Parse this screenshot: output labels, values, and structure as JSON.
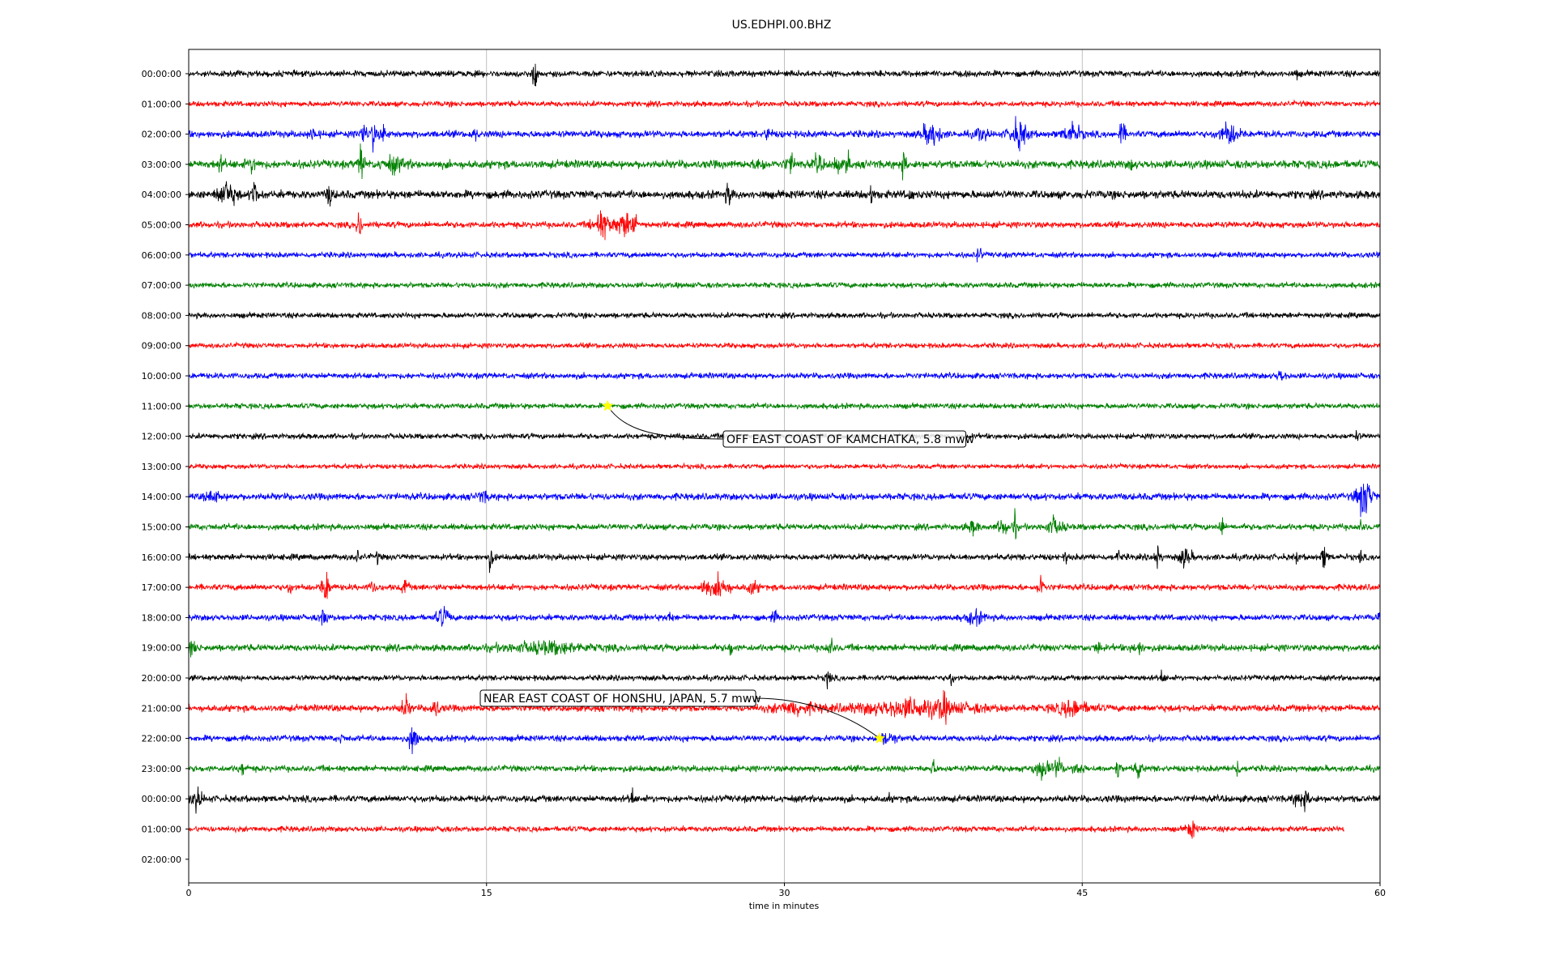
{
  "chart_data": {
    "type": "line",
    "title": "US.EDHPI.00.BHZ",
    "xlabel": "time in minutes",
    "ylabel": "",
    "xlim": [
      0,
      60
    ],
    "x_ticks": [
      "0",
      "15",
      "30",
      "45",
      "60"
    ],
    "x_tick_values": [
      0,
      15,
      30,
      45,
      60
    ],
    "grid": "vertical",
    "row_labels": [
      "00:00:00",
      "01:00:00",
      "02:00:00",
      "03:00:00",
      "04:00:00",
      "05:00:00",
      "06:00:00",
      "07:00:00",
      "08:00:00",
      "09:00:00",
      "10:00:00",
      "11:00:00",
      "12:00:00",
      "13:00:00",
      "14:00:00",
      "15:00:00",
      "16:00:00",
      "17:00:00",
      "18:00:00",
      "19:00:00",
      "20:00:00",
      "21:00:00",
      "22:00:00",
      "23:00:00",
      "00:00:00",
      "01:00:00",
      "02:00:00"
    ],
    "series_colors": [
      "#000000",
      "#ff0000",
      "#0000ff",
      "#008000"
    ],
    "traces": [
      {
        "row": 0,
        "end_min": 60,
        "noise": 0.18,
        "events": [
          {
            "t": 17.4,
            "amp": 1.2,
            "dur": 0.15
          },
          {
            "t": 30.4,
            "amp": 0.25,
            "dur": 0.1
          },
          {
            "t": 55.8,
            "amp": 0.3,
            "dur": 0.1
          }
        ]
      },
      {
        "row": 1,
        "end_min": 60,
        "noise": 0.16,
        "events": []
      },
      {
        "row": 2,
        "end_min": 60,
        "noise": 0.2,
        "events": [
          {
            "t": 6.3,
            "amp": 0.4,
            "dur": 0.3
          },
          {
            "t": 8.8,
            "amp": 0.7,
            "dur": 0.25
          },
          {
            "t": 9.3,
            "amp": 1.0,
            "dur": 0.15
          },
          {
            "t": 9.8,
            "amp": 0.55,
            "dur": 0.25
          },
          {
            "t": 14.4,
            "amp": 0.35,
            "dur": 0.2
          },
          {
            "t": 29.2,
            "amp": 0.45,
            "dur": 0.2
          },
          {
            "t": 37.4,
            "amp": 0.8,
            "dur": 0.6
          },
          {
            "t": 39.9,
            "amp": 0.4,
            "dur": 0.4
          },
          {
            "t": 41.8,
            "amp": 0.9,
            "dur": 0.6
          },
          {
            "t": 44.5,
            "amp": 0.6,
            "dur": 0.6
          },
          {
            "t": 47.0,
            "amp": 0.85,
            "dur": 0.2
          },
          {
            "t": 52.4,
            "amp": 0.65,
            "dur": 0.7
          }
        ]
      },
      {
        "row": 3,
        "end_min": 60,
        "noise": 0.24,
        "events": [
          {
            "t": 1.6,
            "amp": 0.35,
            "dur": 0.3
          },
          {
            "t": 3.2,
            "amp": 0.35,
            "dur": 0.4
          },
          {
            "t": 8.7,
            "amp": 1.2,
            "dur": 0.2
          },
          {
            "t": 10.3,
            "amp": 0.4,
            "dur": 0.8
          },
          {
            "t": 28.8,
            "amp": 0.5,
            "dur": 0.3
          },
          {
            "t": 30.3,
            "amp": 0.55,
            "dur": 0.3
          },
          {
            "t": 31.7,
            "amp": 0.55,
            "dur": 0.3
          },
          {
            "t": 32.6,
            "amp": 0.6,
            "dur": 0.25
          },
          {
            "t": 33.2,
            "amp": 0.9,
            "dur": 0.15
          },
          {
            "t": 36.0,
            "amp": 0.6,
            "dur": 0.25
          },
          {
            "t": 47.5,
            "amp": 0.25,
            "dur": 0.2
          }
        ]
      },
      {
        "row": 4,
        "end_min": 60,
        "noise": 0.24,
        "events": [
          {
            "t": 1.9,
            "amp": 0.8,
            "dur": 0.6
          },
          {
            "t": 3.3,
            "amp": 1.1,
            "dur": 0.2
          },
          {
            "t": 7.1,
            "amp": 0.7,
            "dur": 0.2
          },
          {
            "t": 27.2,
            "amp": 0.8,
            "dur": 0.2
          },
          {
            "t": 34.4,
            "amp": 0.55,
            "dur": 0.2
          },
          {
            "t": 36.3,
            "amp": 0.3,
            "dur": 0.2
          }
        ]
      },
      {
        "row": 5,
        "end_min": 60,
        "noise": 0.18,
        "events": [
          {
            "t": 8.6,
            "amp": 0.9,
            "dur": 0.2
          },
          {
            "t": 20.8,
            "amp": 0.9,
            "dur": 0.6
          },
          {
            "t": 21.9,
            "amp": 0.8,
            "dur": 0.5
          },
          {
            "t": 22.4,
            "amp": 0.6,
            "dur": 0.3
          }
        ]
      },
      {
        "row": 6,
        "end_min": 60,
        "noise": 0.16,
        "events": [
          {
            "t": 39.8,
            "amp": 0.5,
            "dur": 0.2
          }
        ]
      },
      {
        "row": 7,
        "end_min": 60,
        "noise": 0.16,
        "events": []
      },
      {
        "row": 8,
        "end_min": 60,
        "noise": 0.16,
        "events": []
      },
      {
        "row": 9,
        "end_min": 60,
        "noise": 0.15,
        "events": []
      },
      {
        "row": 10,
        "end_min": 60,
        "noise": 0.17,
        "events": [
          {
            "t": 55.0,
            "amp": 0.35,
            "dur": 0.3
          }
        ]
      },
      {
        "row": 11,
        "end_min": 60,
        "noise": 0.16,
        "events": []
      },
      {
        "row": 12,
        "end_min": 60,
        "noise": 0.16,
        "events": [
          {
            "t": 58.8,
            "amp": 0.25,
            "dur": 0.2
          }
        ]
      },
      {
        "row": 13,
        "end_min": 60,
        "noise": 0.14,
        "events": []
      },
      {
        "row": 14,
        "end_min": 60,
        "noise": 0.2,
        "events": [
          {
            "t": 1.2,
            "amp": 0.35,
            "dur": 0.5
          },
          {
            "t": 14.8,
            "amp": 0.3,
            "dur": 0.4
          },
          {
            "t": 59.2,
            "amp": 1.3,
            "dur": 0.5
          }
        ]
      },
      {
        "row": 15,
        "end_min": 60,
        "noise": 0.18,
        "events": [
          {
            "t": 39.5,
            "amp": 0.35,
            "dur": 0.4
          },
          {
            "t": 41.0,
            "amp": 0.6,
            "dur": 0.3
          },
          {
            "t": 41.6,
            "amp": 0.9,
            "dur": 0.15
          },
          {
            "t": 43.6,
            "amp": 0.5,
            "dur": 0.6
          },
          {
            "t": 52.0,
            "amp": 0.7,
            "dur": 0.15
          },
          {
            "t": 59.0,
            "amp": 0.3,
            "dur": 0.2
          }
        ]
      },
      {
        "row": 16,
        "end_min": 60,
        "noise": 0.18,
        "events": [
          {
            "t": 8.5,
            "amp": 0.45,
            "dur": 0.1
          },
          {
            "t": 9.5,
            "amp": 0.4,
            "dur": 0.1
          },
          {
            "t": 15.2,
            "amp": 0.75,
            "dur": 0.2
          },
          {
            "t": 44.2,
            "amp": 0.5,
            "dur": 0.1
          },
          {
            "t": 46.8,
            "amp": 0.5,
            "dur": 0.1
          },
          {
            "t": 48.8,
            "amp": 0.8,
            "dur": 0.2
          },
          {
            "t": 50.2,
            "amp": 0.6,
            "dur": 0.4
          },
          {
            "t": 55.8,
            "amp": 0.5,
            "dur": 0.1
          },
          {
            "t": 57.2,
            "amp": 0.75,
            "dur": 0.2
          },
          {
            "t": 59.0,
            "amp": 0.4,
            "dur": 0.1
          }
        ]
      },
      {
        "row": 17,
        "end_min": 60,
        "noise": 0.18,
        "events": [
          {
            "t": 5.1,
            "amp": 0.35,
            "dur": 0.2
          },
          {
            "t": 6.9,
            "amp": 1.0,
            "dur": 0.3
          },
          {
            "t": 9.3,
            "amp": 0.5,
            "dur": 0.2
          },
          {
            "t": 10.9,
            "amp": 0.6,
            "dur": 0.2
          },
          {
            "t": 26.0,
            "amp": 0.6,
            "dur": 0.3
          },
          {
            "t": 26.8,
            "amp": 0.8,
            "dur": 0.5
          },
          {
            "t": 28.4,
            "amp": 0.4,
            "dur": 0.4
          },
          {
            "t": 42.9,
            "amp": 0.8,
            "dur": 0.2
          }
        ]
      },
      {
        "row": 18,
        "end_min": 60,
        "noise": 0.18,
        "events": [
          {
            "t": 6.8,
            "amp": 0.45,
            "dur": 0.3
          },
          {
            "t": 12.8,
            "amp": 0.65,
            "dur": 0.4
          },
          {
            "t": 24.2,
            "amp": 0.3,
            "dur": 0.2
          },
          {
            "t": 29.5,
            "amp": 0.35,
            "dur": 0.2
          },
          {
            "t": 39.6,
            "amp": 0.4,
            "dur": 0.6
          },
          {
            "t": 60.0,
            "amp": 0.3,
            "dur": 0.2
          }
        ]
      },
      {
        "row": 19,
        "end_min": 60,
        "noise": 0.2,
        "events": [
          {
            "t": 0.2,
            "amp": 0.4,
            "dur": 0.3
          },
          {
            "t": 18.0,
            "amp": 0.3,
            "dur": 3.0
          },
          {
            "t": 27.3,
            "amp": 0.4,
            "dur": 0.2
          },
          {
            "t": 32.3,
            "amp": 0.7,
            "dur": 0.2
          },
          {
            "t": 45.8,
            "amp": 0.4,
            "dur": 0.2
          },
          {
            "t": 47.8,
            "amp": 0.35,
            "dur": 0.4
          }
        ]
      },
      {
        "row": 20,
        "end_min": 60,
        "noise": 0.16,
        "events": [
          {
            "t": 32.2,
            "amp": 0.9,
            "dur": 0.15
          },
          {
            "t": 38.4,
            "amp": 0.4,
            "dur": 0.2
          },
          {
            "t": 49.0,
            "amp": 0.35,
            "dur": 0.2
          }
        ]
      },
      {
        "row": 21,
        "end_min": 60,
        "noise": 0.2,
        "events": [
          {
            "t": 10.9,
            "amp": 0.7,
            "dur": 0.3
          },
          {
            "t": 12.4,
            "amp": 0.6,
            "dur": 0.3
          },
          {
            "t": 30.5,
            "amp": 0.35,
            "dur": 1.5
          },
          {
            "t": 36.5,
            "amp": 0.5,
            "dur": 4.0
          },
          {
            "t": 38.0,
            "amp": 0.6,
            "dur": 0.3
          },
          {
            "t": 44.5,
            "amp": 0.45,
            "dur": 1.2
          }
        ]
      },
      {
        "row": 22,
        "end_min": 60,
        "noise": 0.18,
        "events": [
          {
            "t": 7.7,
            "amp": 0.4,
            "dur": 0.1
          },
          {
            "t": 11.3,
            "amp": 1.0,
            "dur": 0.3
          },
          {
            "t": 35.2,
            "amp": 0.35,
            "dur": 0.6
          }
        ]
      },
      {
        "row": 23,
        "end_min": 60,
        "noise": 0.18,
        "events": [
          {
            "t": 2.7,
            "amp": 0.3,
            "dur": 0.3
          },
          {
            "t": 37.5,
            "amp": 0.6,
            "dur": 0.15
          },
          {
            "t": 43.0,
            "amp": 0.5,
            "dur": 0.6
          },
          {
            "t": 43.8,
            "amp": 0.6,
            "dur": 0.3
          },
          {
            "t": 44.8,
            "amp": 0.5,
            "dur": 0.3
          },
          {
            "t": 46.8,
            "amp": 0.65,
            "dur": 0.15
          },
          {
            "t": 47.8,
            "amp": 0.8,
            "dur": 0.2
          },
          {
            "t": 52.8,
            "amp": 0.55,
            "dur": 0.2
          }
        ]
      },
      {
        "row": 24,
        "end_min": 60,
        "noise": 0.2,
        "events": [
          {
            "t": 0.4,
            "amp": 0.6,
            "dur": 0.4
          },
          {
            "t": 22.3,
            "amp": 0.75,
            "dur": 0.15
          },
          {
            "t": 35.3,
            "amp": 0.25,
            "dur": 0.1
          },
          {
            "t": 56.1,
            "amp": 0.5,
            "dur": 0.6
          }
        ]
      },
      {
        "row": 25,
        "end_min": 58.2,
        "noise": 0.16,
        "events": [
          {
            "t": 12.8,
            "amp": 0.3,
            "dur": 0.1
          },
          {
            "t": 50.5,
            "amp": 0.6,
            "dur": 0.3
          }
        ]
      }
    ],
    "events": [
      {
        "label": "OFF EAST COAST OF KAMCHATKA, 5.8 mww",
        "row": 11,
        "minute": 21.1
      },
      {
        "label": "NEAR EAST COAST OF HONSHU, JAPAN, 5.7 mww",
        "row": 22,
        "minute": 34.8
      }
    ]
  }
}
